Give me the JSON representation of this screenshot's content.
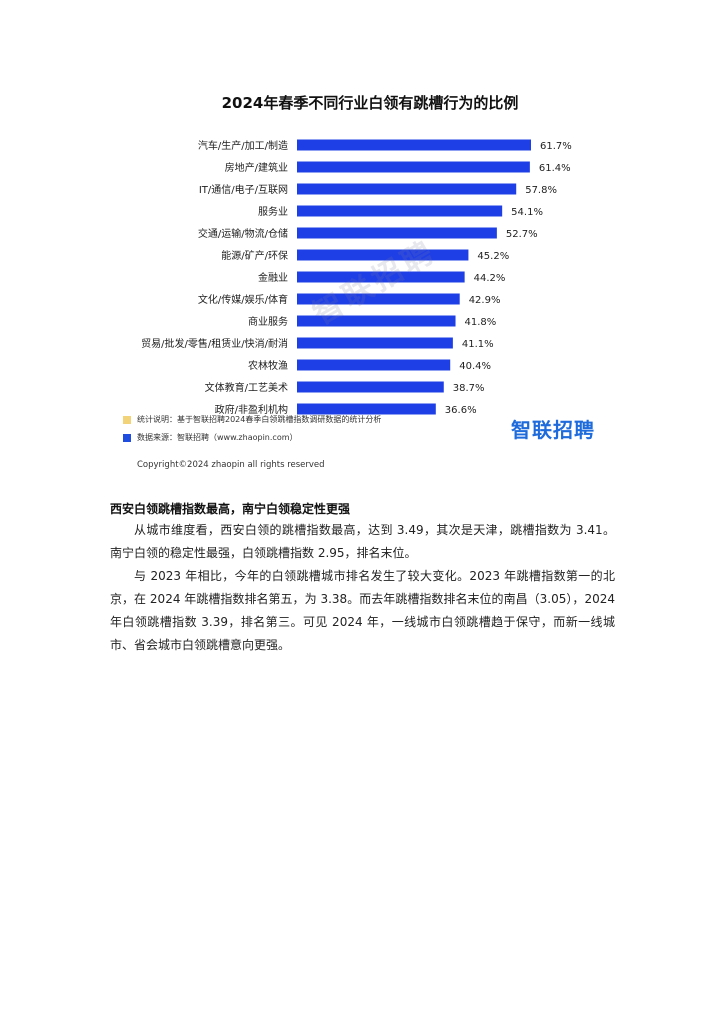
{
  "figure": {
    "title": "2024年春季不同行业白领有跳槽行为的比例",
    "legend": [
      {
        "label": "统计说明：基于智联招聘2024春季白领跳槽指数调研数据的统计分析",
        "color": "#f2d37a"
      },
      {
        "label": "数据来源：智联招聘（www.zhaopin.com）",
        "color": "#1f4de0"
      }
    ],
    "logo_text": "智联招聘",
    "watermark_text": "智联招聘",
    "copyright": "Copyright©2024 zhaopin all rights reserved"
  },
  "chart_data": {
    "type": "bar",
    "orientation": "horizontal",
    "title": "2024年春季不同行业白领有跳槽行为的比例",
    "categories": [
      "汽车/生产/加工/制造",
      "房地产/建筑业",
      "IT/通信/电子/互联网",
      "服务业",
      "交通/运输/物流/仓储",
      "能源/矿产/环保",
      "金融业",
      "文化/传媒/娱乐/体育",
      "商业服务",
      "贸易/批发/零售/租赁业/快消/耐消",
      "农林牧渔",
      "文体教育/工艺美术",
      "政府/非盈利机构"
    ],
    "values": [
      61.7,
      61.4,
      57.8,
      54.1,
      52.7,
      45.2,
      44.2,
      42.9,
      41.8,
      41.1,
      40.4,
      38.7,
      36.6
    ],
    "value_labels": [
      "61.7%",
      "61.4%",
      "57.8%",
      "54.1%",
      "52.7%",
      "45.2%",
      "44.2%",
      "42.9%",
      "41.8%",
      "41.1%",
      "40.4%",
      "38.7%",
      "36.6%"
    ],
    "unit": "%",
    "bar_color": "#1f3fe6",
    "xlim": [
      0,
      61.7
    ],
    "grid": false
  },
  "article": {
    "heading": "西安白领跳槽指数最高，南宁白领稳定性更强",
    "paragraphs": [
      "从城市维度看，西安白领的跳槽指数最高，达到 3.49，其次是天津，跳槽指数为 3.41。南宁白领的稳定性最强，白领跳槽指数 2.95，排名末位。",
      "与 2023 年相比，今年的白领跳槽城市排名发生了较大变化。2023 年跳槽指数第一的北京，在 2024 年跳槽指数排名第五，为 3.38。而去年跳槽指数排名末位的南昌（3.05），2024 年白领跳槽指数 3.39，排名第三。可见 2024 年，一线城市白领跳槽趋于保守，而新一线城市、省会城市白领跳槽意向更强。"
    ]
  }
}
